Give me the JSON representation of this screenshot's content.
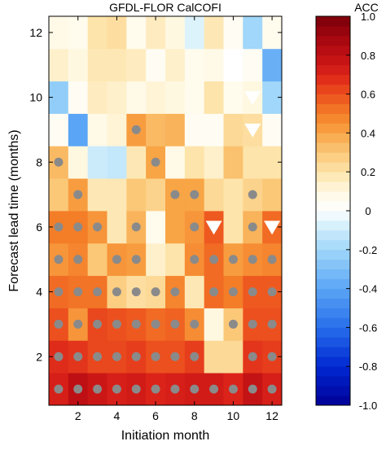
{
  "chart_data": {
    "type": "heatmap",
    "title": "GFDL-FLOR CalCOFI",
    "xlabel": "Initiation month",
    "ylabel": "Forecast lead time (months)",
    "x": [
      1,
      2,
      3,
      4,
      5,
      6,
      7,
      8,
      9,
      10,
      11,
      12
    ],
    "y": [
      1,
      2,
      3,
      4,
      5,
      6,
      7,
      8,
      9,
      10,
      11,
      12
    ],
    "xticks": [
      "2",
      "4",
      "6",
      "8",
      "10",
      "12"
    ],
    "yticks": [
      "2",
      "4",
      "6",
      "8",
      "10",
      "12"
    ],
    "colorbar": {
      "label": "ACC",
      "range": [
        -1.0,
        1.0
      ],
      "ticks": [
        "1.0",
        "0.8",
        "0.6",
        "0.4",
        "0.2",
        "0",
        "-0.2",
        "-0.4",
        "-0.6",
        "-0.8",
        "-1.0"
      ]
    },
    "values": [
      [
        0.72,
        0.8,
        0.76,
        0.72,
        0.74,
        0.7,
        0.72,
        0.74,
        0.74,
        0.7,
        0.78,
        0.72
      ],
      [
        0.68,
        0.66,
        0.62,
        0.62,
        0.64,
        0.6,
        0.6,
        0.64,
        0.24,
        0.24,
        0.66,
        0.64
      ],
      [
        0.6,
        0.44,
        0.62,
        0.6,
        0.58,
        0.54,
        0.56,
        0.46,
        0.1,
        0.3,
        0.6,
        0.6
      ],
      [
        0.54,
        0.52,
        0.52,
        0.28,
        0.22,
        0.24,
        0.48,
        0.18,
        0.54,
        0.5,
        0.58,
        0.58
      ],
      [
        0.44,
        0.48,
        0.3,
        0.44,
        0.42,
        0.14,
        0.2,
        0.46,
        0.54,
        0.42,
        0.46,
        0.48
      ],
      [
        0.5,
        0.5,
        0.44,
        0.18,
        0.36,
        0.06,
        0.4,
        0.44,
        0.58,
        0.2,
        0.36,
        0.54
      ],
      [
        0.3,
        0.42,
        0.18,
        0.18,
        0.3,
        0.26,
        0.4,
        0.4,
        0.24,
        0.2,
        0.26,
        0.3
      ],
      [
        0.34,
        0.1,
        -0.1,
        -0.12,
        0.18,
        0.4,
        0.08,
        0.2,
        0.14,
        0.32,
        0.2,
        0.2
      ],
      [
        0.04,
        -0.4,
        0.08,
        0.12,
        0.42,
        0.34,
        0.36,
        0.04,
        0.04,
        0.24,
        0.22,
        0.04
      ],
      [
        -0.24,
        0.04,
        0.16,
        0.14,
        0.08,
        0.12,
        0.1,
        0.06,
        0.2,
        0.06,
        0.1,
        -0.2
      ],
      [
        0.14,
        0.1,
        0.18,
        0.18,
        0.16,
        0.04,
        0.14,
        0.06,
        0.08,
        0.0,
        0.04,
        -0.36
      ],
      [
        0.08,
        0.06,
        0.2,
        0.22,
        0.06,
        0.16,
        0.1,
        -0.06,
        0.18,
        0.04,
        -0.2,
        0.06
      ]
    ],
    "significant_dots": [
      [
        1,
        1
      ],
      [
        2,
        1
      ],
      [
        3,
        1
      ],
      [
        4,
        1
      ],
      [
        5,
        1
      ],
      [
        6,
        1
      ],
      [
        7,
        1
      ],
      [
        8,
        1
      ],
      [
        9,
        1
      ],
      [
        10,
        1
      ],
      [
        11,
        1
      ],
      [
        12,
        1
      ],
      [
        1,
        2
      ],
      [
        2,
        2
      ],
      [
        3,
        2
      ],
      [
        4,
        2
      ],
      [
        5,
        2
      ],
      [
        6,
        2
      ],
      [
        7,
        2
      ],
      [
        8,
        2
      ],
      [
        11,
        2
      ],
      [
        12,
        2
      ],
      [
        1,
        3
      ],
      [
        2,
        3
      ],
      [
        3,
        3
      ],
      [
        4,
        3
      ],
      [
        5,
        3
      ],
      [
        6,
        3
      ],
      [
        7,
        3
      ],
      [
        8,
        3
      ],
      [
        10,
        3
      ],
      [
        11,
        3
      ],
      [
        12,
        3
      ],
      [
        1,
        4
      ],
      [
        2,
        4
      ],
      [
        3,
        4
      ],
      [
        4,
        4
      ],
      [
        5,
        4
      ],
      [
        6,
        4
      ],
      [
        7,
        4
      ],
      [
        9,
        4
      ],
      [
        10,
        4
      ],
      [
        11,
        4
      ],
      [
        12,
        4
      ],
      [
        1,
        5
      ],
      [
        2,
        5
      ],
      [
        4,
        5
      ],
      [
        5,
        5
      ],
      [
        8,
        5
      ],
      [
        9,
        5
      ],
      [
        10,
        5
      ],
      [
        11,
        5
      ],
      [
        12,
        5
      ],
      [
        1,
        6
      ],
      [
        2,
        6
      ],
      [
        3,
        6
      ],
      [
        5,
        6
      ],
      [
        8,
        6
      ],
      [
        9,
        6
      ],
      [
        11,
        6
      ],
      [
        2,
        7
      ],
      [
        7,
        7
      ],
      [
        8,
        7
      ],
      [
        11,
        7
      ],
      [
        1,
        8
      ],
      [
        6,
        8
      ],
      [
        5,
        9
      ]
    ],
    "negative_significant_triangles": [
      [
        9,
        6
      ],
      [
        12,
        6
      ],
      [
        11,
        9
      ],
      [
        11,
        10
      ]
    ],
    "grid": false
  }
}
